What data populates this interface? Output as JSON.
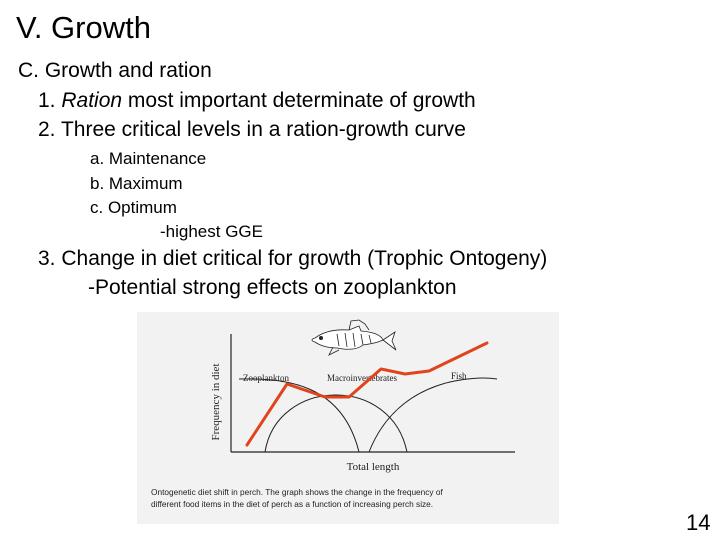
{
  "slide": {
    "title": "V.   Growth",
    "section": "C. Growth and ration",
    "item1_num": "1. ",
    "item1_em": "Ration",
    "item1_rest": " most important determinate of growth",
    "item2": "2. Three critical levels in a ration-growth curve",
    "sub_a": "a. Maintenance",
    "sub_b": "b. Maximum",
    "sub_c": "c. Optimum",
    "sub_c_note": "-highest GGE",
    "item3": "3.  Change in diet critical for growth (Trophic Ontogeny)",
    "item3_note": "-Potential strong effects on zooplankton",
    "page_number": "14"
  },
  "figure": {
    "y_label": "Frequency in diet",
    "x_label": "Total  length",
    "curve_labels": [
      "Zooplankton",
      "Macroinvertebrates",
      "Fish"
    ],
    "caption_line1": "Ontogenetic diet shift in perch. The graph shows the change in the frequency of",
    "caption_line2": "different food items in the diet of perch as a function of increasing perch size.",
    "colors": {
      "growth_line": "#e0441c",
      "ink": "#222222"
    },
    "icons": [
      "perch-fish-drawing"
    ]
  }
}
